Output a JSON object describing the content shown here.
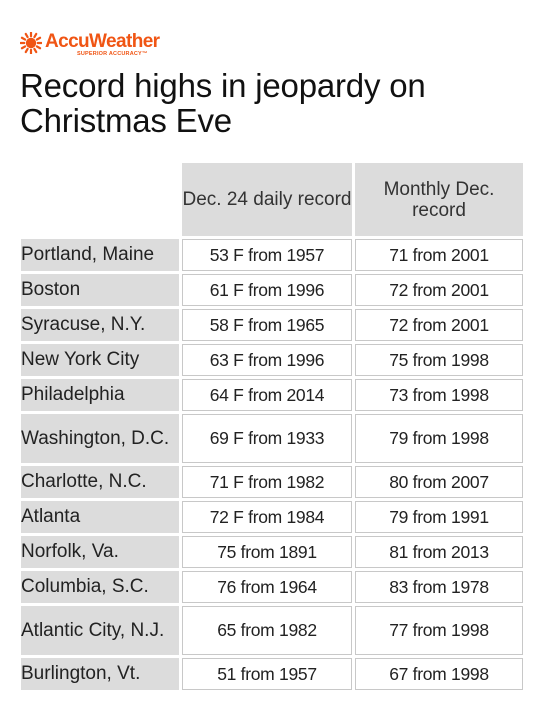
{
  "brand": {
    "name": "AccuWeather",
    "tagline": "SUPERIOR ACCURACY™",
    "icon": "sun-icon",
    "color": "#f05514"
  },
  "title": "Record highs in jeopardy on Christmas Eve",
  "table": {
    "headers": [
      "Dec. 24 daily record",
      "Monthly Dec. record"
    ],
    "rows": [
      {
        "city": "Portland, Maine",
        "daily": "53 F from 1957",
        "monthly": "71 from 2001"
      },
      {
        "city": "Boston",
        "daily": "61 F from 1996",
        "monthly": "72 from 2001"
      },
      {
        "city": "Syracuse, N.Y.",
        "daily": "58 F from 1965",
        "monthly": "72 from 2001"
      },
      {
        "city": "New York City",
        "daily": "63 F from 1996",
        "monthly": "75 from 1998"
      },
      {
        "city": "Philadelphia",
        "daily": "64 F from 2014",
        "monthly": "73 from 1998"
      },
      {
        "city": "Washington, D.C.",
        "daily": "69 F from 1933",
        "monthly": "79 from 1998"
      },
      {
        "city": "Charlotte, N.C.",
        "daily": "71 F from 1982",
        "monthly": "80 from 2007"
      },
      {
        "city": "Atlanta",
        "daily": "72 F from 1984",
        "monthly": "79 from 1991"
      },
      {
        "city": "Norfolk, Va.",
        "daily": "75 from 1891",
        "monthly": "81 from 2013"
      },
      {
        "city": "Columbia, S.C.",
        "daily": "76 from 1964",
        "monthly": "83 from 1978"
      },
      {
        "city": "Atlantic City, N.J.",
        "daily": "65 from 1982",
        "monthly": "77 from 1998"
      },
      {
        "city": "Burlington, Vt.",
        "daily": "51 from 1957",
        "monthly": "67 from 1998"
      }
    ]
  }
}
